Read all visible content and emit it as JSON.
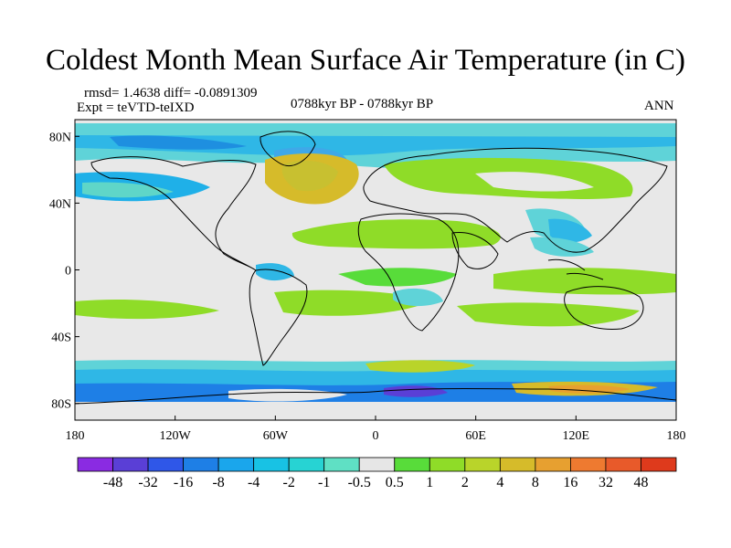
{
  "title": "Coldest Month Mean Surface Air Temperature (in C)",
  "stats": {
    "rmsd_line": "rmsd= 1.4638 diff= -0.0891309",
    "expt_line": "Expt = teVTD-teIXD"
  },
  "period": "0788kyr BP - 0788kyr BP",
  "season": "ANN",
  "axes": {
    "lon_ticks": [
      "180",
      "120W",
      "60W",
      "0",
      "60E",
      "120E",
      "180"
    ],
    "lat_ticks": [
      "80N",
      "40N",
      "0",
      "40S",
      "80S"
    ]
  },
  "colorbar": {
    "labels": [
      "-48",
      "-32",
      "-16",
      "-8",
      "-4",
      "-2",
      "-1",
      "-0.5",
      "0.5",
      "1",
      "2",
      "4",
      "8",
      "16",
      "32",
      "48"
    ],
    "colors": [
      "#8a2be2",
      "#5a3fd6",
      "#2f57e8",
      "#1e7fe6",
      "#1aa6ec",
      "#18c2e4",
      "#27d3d3",
      "#5fe0c4",
      "#e6e6e6",
      "#58dc3a",
      "#8fdc28",
      "#b9d42a",
      "#d6bb2a",
      "#e7a030",
      "#ee7a30",
      "#e85a2a",
      "#de3a1c"
    ]
  }
}
